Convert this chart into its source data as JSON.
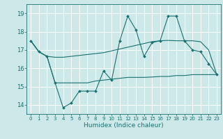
{
  "xlabel": "Humidex (Indice chaleur)",
  "bg_color": "#cce8e8",
  "grid_color": "#ffffff",
  "line_color": "#1a7070",
  "xlim": [
    -0.5,
    23.5
  ],
  "ylim": [
    13.5,
    19.5
  ],
  "yticks": [
    14,
    15,
    16,
    17,
    18,
    19
  ],
  "xticks": [
    0,
    1,
    2,
    3,
    4,
    5,
    6,
    7,
    8,
    9,
    10,
    11,
    12,
    13,
    14,
    15,
    16,
    17,
    18,
    19,
    20,
    21,
    22,
    23
  ],
  "line1_x": [
    0,
    1,
    2,
    3,
    4,
    5,
    6,
    7,
    8,
    9,
    10,
    11,
    12,
    13,
    14,
    15,
    16,
    17,
    18,
    19,
    20,
    21,
    22,
    23
  ],
  "line1_y": [
    17.5,
    16.9,
    16.65,
    16.6,
    16.6,
    16.65,
    16.7,
    16.75,
    16.8,
    16.85,
    16.95,
    17.05,
    17.15,
    17.25,
    17.35,
    17.45,
    17.5,
    17.52,
    17.5,
    17.5,
    17.5,
    17.45,
    17.0,
    15.65
  ],
  "line2_x": [
    0,
    1,
    2,
    3,
    4,
    5,
    6,
    7,
    8,
    9,
    10,
    11,
    12,
    13,
    14,
    15,
    16,
    17,
    18,
    19,
    20,
    21,
    22,
    23
  ],
  "line2_y": [
    17.5,
    16.9,
    16.65,
    15.2,
    13.85,
    14.1,
    14.75,
    14.75,
    14.75,
    15.85,
    15.35,
    17.5,
    18.85,
    18.1,
    16.65,
    17.4,
    17.5,
    18.85,
    18.85,
    17.5,
    17.0,
    16.9,
    16.25,
    15.65
  ],
  "line3_x": [
    0,
    1,
    2,
    3,
    4,
    5,
    6,
    7,
    8,
    9,
    10,
    11,
    12,
    13,
    14,
    15,
    16,
    17,
    18,
    19,
    20,
    21,
    22,
    23
  ],
  "line3_y": [
    17.5,
    16.9,
    16.65,
    15.2,
    15.2,
    15.2,
    15.2,
    15.2,
    15.3,
    15.35,
    15.4,
    15.45,
    15.5,
    15.5,
    15.5,
    15.52,
    15.55,
    15.55,
    15.6,
    15.6,
    15.65,
    15.65,
    15.65,
    15.65
  ]
}
